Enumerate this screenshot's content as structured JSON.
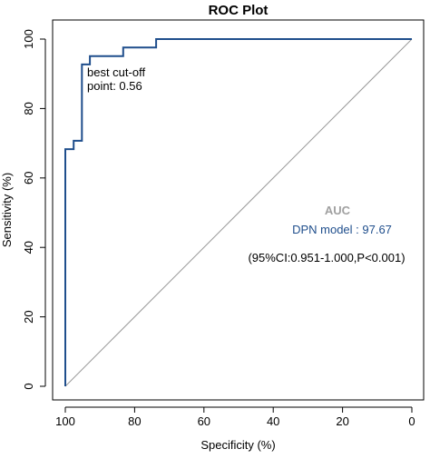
{
  "colors": {
    "roc_line": "#1f4e8c",
    "diagonal": "#999999",
    "auc_heading": "#a0a0a0",
    "model_text": "#1f4e8c",
    "frame": "#000000"
  },
  "chart_data": {
    "type": "line",
    "title": "ROC Plot",
    "xlabel": "Specificity (%)",
    "ylabel": "Sensitivity (%)",
    "xlim": [
      100,
      0
    ],
    "ylim": [
      0,
      100
    ],
    "x_reversed": true,
    "grid": false,
    "xticks": [
      100,
      80,
      60,
      40,
      20,
      0
    ],
    "yticks": [
      0,
      20,
      40,
      60,
      80,
      100
    ],
    "series": [
      {
        "name": "DPN model",
        "specificity": [
          100,
          100,
          100,
          97.6,
          97.6,
          95.2,
          95.2,
          92.9,
          92.9,
          83.3,
          83.3,
          73.8,
          73.8,
          0
        ],
        "sensitivity": [
          0,
          68.3,
          68.3,
          68.3,
          70.7,
          70.7,
          92.7,
          92.7,
          95.1,
          95.1,
          97.6,
          97.6,
          100,
          100
        ]
      }
    ],
    "reference_line": {
      "from": [
        100,
        0
      ],
      "to": [
        0,
        100
      ]
    },
    "annotations": {
      "cutoff_label": "best cut-off\npoint: 0.56",
      "auc_heading": "AUC",
      "model_auc": "DPN model : 97.67",
      "ci_text": "(95%CI:0.951-1.000,P<0.001)"
    }
  }
}
